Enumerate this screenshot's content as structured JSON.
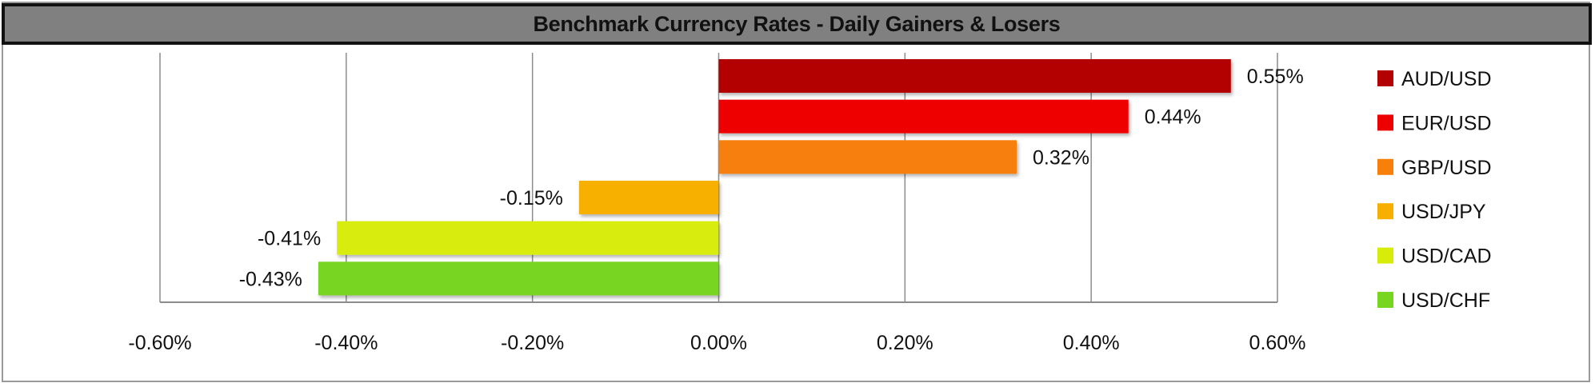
{
  "chart_data": {
    "type": "bar",
    "orientation": "horizontal",
    "title": "Benchmark Currency Rates - Daily Gainers & Losers",
    "categories": [
      "AUD/USD",
      "EUR/USD",
      "GBP/USD",
      "USD/JPY",
      "USD/CAD",
      "USD/CHF"
    ],
    "values": [
      0.55,
      0.44,
      0.32,
      -0.15,
      -0.41,
      -0.43
    ],
    "data_labels": [
      "0.55%",
      "0.44%",
      "0.32%",
      "-0.15%",
      "-0.41%",
      "-0.43%"
    ],
    "colors": [
      "#b30000",
      "#ee0000",
      "#f77f0a",
      "#f8b000",
      "#d8ec0a",
      "#78d620"
    ],
    "xlim": [
      -0.6,
      0.6
    ],
    "xticks": [
      -0.6,
      -0.4,
      -0.2,
      0,
      0.2,
      0.4,
      0.6
    ],
    "xtick_labels": [
      "-0.60%",
      "-0.40%",
      "-0.20%",
      "0.00%",
      "0.20%",
      "0.40%",
      "0.60%"
    ],
    "xlabel": "",
    "ylabel": "",
    "grid": "vertical",
    "legend": "right"
  }
}
